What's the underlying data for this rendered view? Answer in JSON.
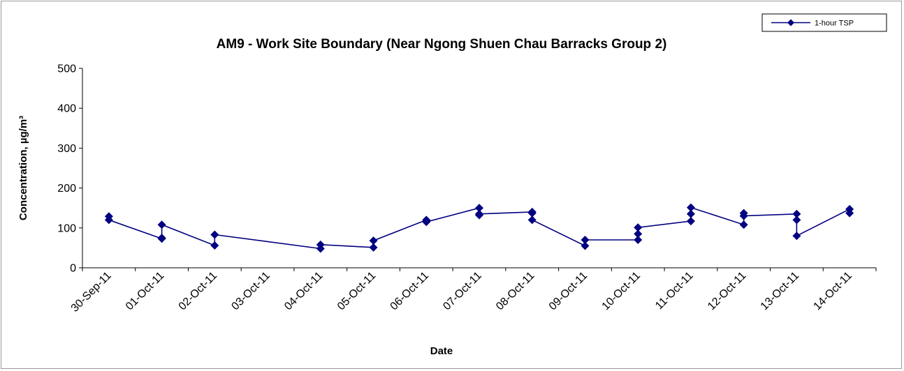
{
  "chart_data": {
    "type": "line",
    "title": "AM9 - Work Site Boundary (Near Ngong Shuen Chau Barracks Group 2)",
    "xlabel": "Date",
    "ylabel": "Concentration, µg/m³",
    "ylim": [
      0,
      500
    ],
    "yticks": [
      "0",
      "100",
      "200",
      "300",
      "400",
      "500"
    ],
    "grid": false,
    "legend_position": "top-right",
    "categories": [
      "30-Sep-11",
      "01-Oct-11",
      "02-Oct-11",
      "03-Oct-11",
      "04-Oct-11",
      "05-Oct-11",
      "06-Oct-11",
      "07-Oct-11",
      "08-Oct-11",
      "09-Oct-11",
      "10-Oct-11",
      "11-Oct-11",
      "12-Oct-11",
      "13-Oct-11",
      "14-Oct-11"
    ],
    "series": [
      {
        "name": "1-hour TSP",
        "color": "#000080",
        "marker": "diamond",
        "points": [
          {
            "x": "30-Sep-11",
            "y": 129
          },
          {
            "x": "30-Sep-11",
            "y": 120
          },
          {
            "x": "01-Oct-11",
            "y": 73
          },
          {
            "x": "01-Oct-11",
            "y": 75
          },
          {
            "x": "01-Oct-11",
            "y": 108
          },
          {
            "x": "02-Oct-11",
            "y": 56
          },
          {
            "x": "02-Oct-11",
            "y": 83
          },
          {
            "x": "04-Oct-11",
            "y": 48
          },
          {
            "x": "04-Oct-11",
            "y": 58
          },
          {
            "x": "05-Oct-11",
            "y": 51
          },
          {
            "x": "05-Oct-11",
            "y": 68
          },
          {
            "x": "06-Oct-11",
            "y": 120
          },
          {
            "x": "06-Oct-11",
            "y": 115
          },
          {
            "x": "07-Oct-11",
            "y": 150
          },
          {
            "x": "07-Oct-11",
            "y": 132
          },
          {
            "x": "07-Oct-11",
            "y": 135
          },
          {
            "x": "08-Oct-11",
            "y": 140
          },
          {
            "x": "08-Oct-11",
            "y": 137
          },
          {
            "x": "08-Oct-11",
            "y": 120
          },
          {
            "x": "09-Oct-11",
            "y": 55
          },
          {
            "x": "09-Oct-11",
            "y": 70
          },
          {
            "x": "10-Oct-11",
            "y": 70
          },
          {
            "x": "10-Oct-11",
            "y": 85
          },
          {
            "x": "10-Oct-11",
            "y": 101
          },
          {
            "x": "11-Oct-11",
            "y": 117
          },
          {
            "x": "11-Oct-11",
            "y": 135
          },
          {
            "x": "11-Oct-11",
            "y": 151
          },
          {
            "x": "12-Oct-11",
            "y": 108
          },
          {
            "x": "12-Oct-11",
            "y": 137
          },
          {
            "x": "12-Oct-11",
            "y": 130
          },
          {
            "x": "13-Oct-11",
            "y": 135
          },
          {
            "x": "13-Oct-11",
            "y": 120
          },
          {
            "x": "13-Oct-11",
            "y": 80
          },
          {
            "x": "14-Oct-11",
            "y": 147
          },
          {
            "x": "14-Oct-11",
            "y": 137
          }
        ]
      }
    ]
  }
}
